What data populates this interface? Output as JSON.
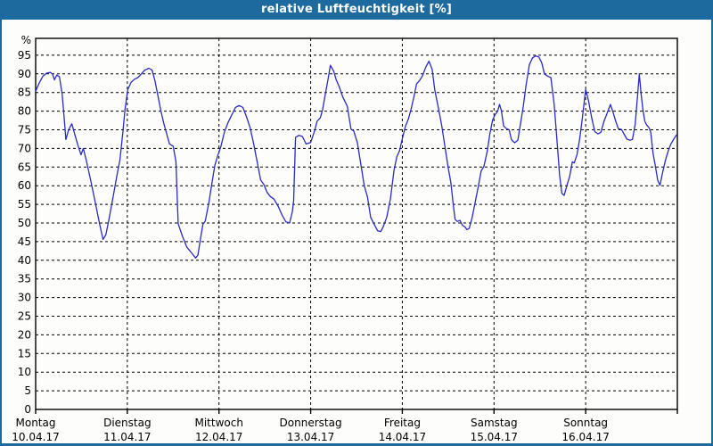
{
  "title_bar": {
    "title": "relative Luftfeuchtigkeit [%]"
  },
  "colors": {
    "titlebar_bg": "#1d6a9e",
    "window_border": "#1d6a9e",
    "background": "#fdfdfb",
    "grid": "#000000",
    "axis": "#000000",
    "line": "#2a2ac8",
    "text": "#000000",
    "title_text": "#ffffff"
  },
  "chart_data": {
    "type": "line",
    "title": "relative Luftfeuchtigkeit [%]",
    "ylabel": "%",
    "xlabel": "",
    "ylim": [
      0,
      100
    ],
    "ytick_step": 5,
    "yticks": [
      0,
      5,
      10,
      15,
      20,
      25,
      30,
      35,
      40,
      45,
      50,
      55,
      60,
      65,
      70,
      75,
      80,
      85,
      90,
      95
    ],
    "grid": "dashed, horizontal every 5 % and vertical at each day boundary",
    "legend": "none",
    "x_unit": "days since Montag 10.04.17 00:00, total span 7 days",
    "categories": [
      {
        "name": "Montag",
        "date": "10.04.17"
      },
      {
        "name": "Dienstag",
        "date": "11.04.17"
      },
      {
        "name": "Mittwoch",
        "date": "12.04.17"
      },
      {
        "name": "Donnerstag",
        "date": "13.04.17"
      },
      {
        "name": "Freitag",
        "date": "14.04.17"
      },
      {
        "name": "Samstag",
        "date": "15.04.17"
      },
      {
        "name": "Sonntag",
        "date": "16.04.17"
      }
    ],
    "series": [
      {
        "name": "relative Luftfeuchtigkeit",
        "color": "#2a2ac8",
        "points": [
          [
            0.0,
            85.3
          ],
          [
            0.04,
            87.6
          ],
          [
            0.08,
            89.4
          ],
          [
            0.12,
            90.2
          ],
          [
            0.16,
            90.4
          ],
          [
            0.185,
            89.9
          ],
          [
            0.205,
            88.4
          ],
          [
            0.23,
            89.7
          ],
          [
            0.26,
            89.2
          ],
          [
            0.29,
            84.5
          ],
          [
            0.315,
            77.0
          ],
          [
            0.33,
            72.4
          ],
          [
            0.36,
            75.0
          ],
          [
            0.395,
            76.6
          ],
          [
            0.43,
            73.5
          ],
          [
            0.465,
            70.6
          ],
          [
            0.495,
            68.3
          ],
          [
            0.52,
            70.0
          ],
          [
            0.55,
            67.0
          ],
          [
            0.6,
            61.5
          ],
          [
            0.65,
            55.5
          ],
          [
            0.7,
            49.5
          ],
          [
            0.735,
            45.6
          ],
          [
            0.765,
            46.8
          ],
          [
            0.8,
            51.0
          ],
          [
            0.845,
            57.0
          ],
          [
            0.885,
            62.5
          ],
          [
            0.92,
            67.0
          ],
          [
            0.95,
            74.0
          ],
          [
            0.975,
            80.5
          ],
          [
            1.005,
            85.8
          ],
          [
            1.04,
            87.7
          ],
          [
            1.08,
            88.6
          ],
          [
            1.115,
            89.0
          ],
          [
            1.15,
            89.9
          ],
          [
            1.19,
            91.0
          ],
          [
            1.235,
            91.5
          ],
          [
            1.27,
            91.0
          ],
          [
            1.3,
            88.3
          ],
          [
            1.335,
            84.0
          ],
          [
            1.365,
            80.2
          ],
          [
            1.4,
            76.5
          ],
          [
            1.435,
            73.4
          ],
          [
            1.46,
            71.2
          ],
          [
            1.5,
            70.6
          ],
          [
            1.53,
            66.5
          ],
          [
            1.555,
            49.8
          ],
          [
            1.6,
            46.5
          ],
          [
            1.65,
            43.5
          ],
          [
            1.7,
            42.0
          ],
          [
            1.745,
            40.6
          ],
          [
            1.77,
            41.4
          ],
          [
            1.8,
            46.0
          ],
          [
            1.825,
            49.7
          ],
          [
            1.85,
            50.5
          ],
          [
            1.89,
            55.5
          ],
          [
            1.925,
            61.0
          ],
          [
            1.955,
            65.5
          ],
          [
            1.985,
            68.0
          ],
          [
            2.02,
            70.5
          ],
          [
            2.06,
            74.5
          ],
          [
            2.1,
            77.0
          ],
          [
            2.14,
            79.0
          ],
          [
            2.18,
            81.0
          ],
          [
            2.22,
            81.5
          ],
          [
            2.26,
            81.0
          ],
          [
            2.3,
            78.5
          ],
          [
            2.34,
            75.5
          ],
          [
            2.38,
            71.0
          ],
          [
            2.42,
            66.0
          ],
          [
            2.455,
            61.5
          ],
          [
            2.49,
            60.3
          ],
          [
            2.525,
            58.2
          ],
          [
            2.56,
            57.1
          ],
          [
            2.6,
            56.4
          ],
          [
            2.645,
            54.5
          ],
          [
            2.69,
            52.0
          ],
          [
            2.73,
            50.3
          ],
          [
            2.77,
            50.0
          ],
          [
            2.8,
            53.0
          ],
          [
            2.815,
            56.0
          ],
          [
            2.835,
            73.0
          ],
          [
            2.87,
            73.5
          ],
          [
            2.91,
            73.2
          ],
          [
            2.95,
            71.2
          ],
          [
            3.0,
            71.6
          ],
          [
            3.04,
            74.5
          ],
          [
            3.07,
            77.3
          ],
          [
            3.105,
            78.2
          ],
          [
            3.13,
            80.3
          ],
          [
            3.16,
            84.5
          ],
          [
            3.19,
            88.6
          ],
          [
            3.215,
            92.3
          ],
          [
            3.25,
            90.8
          ],
          [
            3.28,
            88.3
          ],
          [
            3.31,
            86.6
          ],
          [
            3.35,
            83.8
          ],
          [
            3.4,
            81.3
          ],
          [
            3.44,
            75.2
          ],
          [
            3.47,
            74.7
          ],
          [
            3.51,
            71.5
          ],
          [
            3.55,
            65.4
          ],
          [
            3.585,
            60.0
          ],
          [
            3.62,
            57.0
          ],
          [
            3.655,
            51.5
          ],
          [
            3.69,
            49.8
          ],
          [
            3.73,
            47.9
          ],
          [
            3.765,
            47.7
          ],
          [
            3.79,
            48.9
          ],
          [
            3.83,
            51.5
          ],
          [
            3.87,
            56.5
          ],
          [
            3.91,
            64.3
          ],
          [
            3.94,
            67.8
          ],
          [
            3.97,
            69.4
          ],
          [
            4.0,
            72.6
          ],
          [
            4.035,
            76.0
          ],
          [
            4.065,
            77.8
          ],
          [
            4.095,
            80.5
          ],
          [
            4.125,
            83.7
          ],
          [
            4.155,
            87.3
          ],
          [
            4.19,
            88.3
          ],
          [
            4.22,
            89.5
          ],
          [
            4.255,
            91.8
          ],
          [
            4.29,
            93.4
          ],
          [
            4.325,
            91.2
          ],
          [
            4.355,
            85.6
          ],
          [
            4.395,
            80.6
          ],
          [
            4.43,
            76.0
          ],
          [
            4.465,
            70.4
          ],
          [
            4.5,
            64.8
          ],
          [
            4.53,
            60.8
          ],
          [
            4.555,
            55.0
          ],
          [
            4.575,
            51.0
          ],
          [
            4.6,
            50.4
          ],
          [
            4.63,
            50.7
          ],
          [
            4.655,
            49.4
          ],
          [
            4.685,
            48.9
          ],
          [
            4.705,
            48.2
          ],
          [
            4.73,
            48.6
          ],
          [
            4.76,
            51.3
          ],
          [
            4.795,
            55.6
          ],
          [
            4.83,
            60.0
          ],
          [
            4.86,
            64.0
          ],
          [
            4.89,
            65.2
          ],
          [
            4.925,
            69.1
          ],
          [
            4.955,
            74.0
          ],
          [
            4.985,
            77.6
          ],
          [
            5.01,
            79.0
          ],
          [
            5.04,
            80.0
          ],
          [
            5.06,
            81.8
          ],
          [
            5.08,
            80.2
          ],
          [
            5.105,
            76.0
          ],
          [
            5.135,
            75.3
          ],
          [
            5.165,
            75.0
          ],
          [
            5.19,
            72.4
          ],
          [
            5.225,
            71.5
          ],
          [
            5.26,
            72.2
          ],
          [
            5.29,
            76.7
          ],
          [
            5.32,
            81.4
          ],
          [
            5.35,
            87.0
          ],
          [
            5.385,
            92.4
          ],
          [
            5.42,
            94.3
          ],
          [
            5.455,
            94.8
          ],
          [
            5.49,
            94.5
          ],
          [
            5.52,
            93.0
          ],
          [
            5.55,
            90.0
          ],
          [
            5.585,
            89.4
          ],
          [
            5.62,
            89.0
          ],
          [
            5.655,
            82.0
          ],
          [
            5.675,
            76.0
          ],
          [
            5.695,
            69.5
          ],
          [
            5.715,
            63.0
          ],
          [
            5.74,
            58.0
          ],
          [
            5.765,
            57.4
          ],
          [
            5.8,
            60.5
          ],
          [
            5.825,
            62.4
          ],
          [
            5.855,
            66.4
          ],
          [
            5.875,
            66.1
          ],
          [
            5.905,
            68.3
          ],
          [
            5.935,
            72.7
          ],
          [
            5.965,
            78.3
          ],
          [
            6.0,
            85.8
          ],
          [
            6.03,
            82.9
          ],
          [
            6.065,
            78.3
          ],
          [
            6.1,
            74.5
          ],
          [
            6.135,
            73.9
          ],
          [
            6.165,
            74.3
          ],
          [
            6.2,
            77.3
          ],
          [
            6.235,
            79.5
          ],
          [
            6.27,
            81.8
          ],
          [
            6.3,
            79.6
          ],
          [
            6.325,
            77.5
          ],
          [
            6.355,
            75.3
          ],
          [
            6.39,
            75.1
          ],
          [
            6.42,
            73.8
          ],
          [
            6.45,
            72.5
          ],
          [
            6.48,
            72.2
          ],
          [
            6.51,
            72.4
          ],
          [
            6.54,
            76.5
          ],
          [
            6.565,
            84.0
          ],
          [
            6.585,
            90.0
          ],
          [
            6.605,
            84.5
          ],
          [
            6.625,
            80.3
          ],
          [
            6.645,
            77.3
          ],
          [
            6.665,
            76.3
          ],
          [
            6.69,
            75.6
          ],
          [
            6.71,
            74.3
          ],
          [
            6.735,
            68.7
          ],
          [
            6.76,
            65.3
          ],
          [
            6.785,
            61.5
          ],
          [
            6.81,
            60.1
          ],
          [
            6.84,
            63.6
          ],
          [
            6.87,
            66.8
          ],
          [
            6.9,
            69.3
          ],
          [
            6.93,
            71.2
          ],
          [
            6.96,
            72.5
          ],
          [
            6.99,
            73.6
          ]
        ]
      }
    ]
  }
}
